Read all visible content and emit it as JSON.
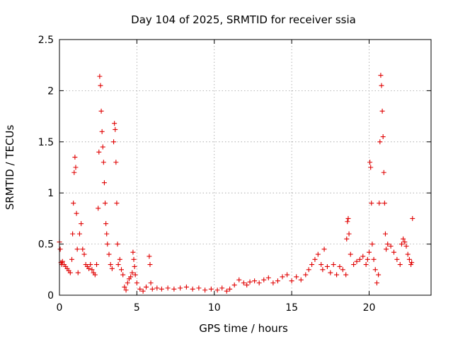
{
  "chart_data": {
    "type": "scatter",
    "title": "Day 104 of 2025, SRMTID for receiver ssia",
    "xlabel": "GPS time / hours",
    "ylabel": "SRMTID / TECUs",
    "xlim": [
      0,
      24
    ],
    "ylim": [
      0,
      2.5
    ],
    "xticks": [
      0,
      5,
      10,
      15,
      20
    ],
    "xtick_labels": [
      "0",
      "5",
      "10",
      "15",
      "20"
    ],
    "yticks": [
      0,
      0.5,
      1,
      1.5,
      2,
      2.5
    ],
    "ytick_labels": [
      "0",
      "0.5",
      "1",
      "1.5",
      "2",
      "2.5"
    ],
    "grid": true,
    "marker": "+",
    "color": "#e00000",
    "series": [
      {
        "name": "SRMTID",
        "x": [
          0.0,
          0.05,
          0.1,
          0.15,
          0.2,
          0.3,
          0.4,
          0.5,
          0.6,
          0.7,
          0.8,
          0.85,
          0.9,
          0.95,
          1.0,
          1.05,
          1.1,
          1.15,
          1.2,
          1.3,
          1.4,
          1.5,
          1.6,
          1.7,
          1.8,
          1.9,
          2.0,
          2.1,
          2.2,
          2.3,
          2.4,
          2.5,
          2.55,
          2.6,
          2.65,
          2.7,
          2.75,
          2.8,
          2.85,
          2.9,
          2.95,
          3.0,
          3.05,
          3.1,
          3.2,
          3.3,
          3.4,
          3.5,
          3.55,
          3.6,
          3.65,
          3.7,
          3.75,
          3.8,
          3.9,
          4.0,
          4.1,
          4.2,
          4.3,
          4.4,
          4.5,
          4.6,
          4.7,
          4.75,
          4.8,
          4.85,
          4.9,
          5.0,
          5.2,
          5.4,
          5.6,
          5.8,
          5.85,
          5.9,
          6.0,
          6.3,
          6.6,
          7.0,
          7.4,
          7.8,
          8.2,
          8.6,
          9.0,
          9.4,
          9.8,
          10.2,
          10.5,
          10.8,
          11.0,
          11.3,
          11.6,
          11.9,
          12.1,
          12.3,
          12.6,
          12.9,
          13.2,
          13.5,
          13.8,
          14.1,
          14.4,
          14.7,
          15.0,
          15.3,
          15.6,
          15.9,
          16.1,
          16.3,
          16.5,
          16.7,
          16.9,
          17.0,
          17.1,
          17.3,
          17.5,
          17.7,
          17.9,
          18.1,
          18.3,
          18.5,
          18.55,
          18.6,
          18.65,
          18.7,
          18.8,
          19.0,
          19.2,
          19.4,
          19.6,
          19.8,
          19.9,
          20.0,
          20.05,
          20.1,
          20.15,
          20.2,
          20.3,
          20.4,
          20.5,
          20.6,
          20.65,
          20.7,
          20.75,
          20.8,
          20.85,
          20.9,
          20.95,
          21.0,
          21.05,
          21.1,
          21.2,
          21.4,
          21.6,
          21.8,
          22.0,
          22.1,
          22.2,
          22.3,
          22.4,
          22.5,
          22.6,
          22.7,
          22.75,
          22.8
        ],
        "y": [
          0.52,
          0.45,
          0.32,
          0.3,
          0.33,
          0.3,
          0.28,
          0.26,
          0.24,
          0.22,
          0.35,
          0.6,
          0.9,
          1.2,
          1.35,
          1.25,
          0.8,
          0.45,
          0.22,
          0.6,
          0.7,
          0.45,
          0.4,
          0.3,
          0.28,
          0.26,
          0.3,
          0.25,
          0.22,
          0.2,
          0.3,
          0.85,
          1.4,
          2.14,
          2.05,
          1.8,
          1.6,
          1.45,
          1.3,
          1.1,
          0.9,
          0.7,
          0.6,
          0.5,
          0.4,
          0.3,
          0.26,
          1.5,
          1.68,
          1.62,
          1.3,
          0.9,
          0.5,
          0.3,
          0.35,
          0.25,
          0.2,
          0.08,
          0.05,
          0.12,
          0.16,
          0.18,
          0.22,
          0.42,
          0.35,
          0.28,
          0.2,
          0.12,
          0.06,
          0.04,
          0.08,
          0.38,
          0.3,
          0.12,
          0.06,
          0.07,
          0.06,
          0.07,
          0.06,
          0.07,
          0.08,
          0.06,
          0.07,
          0.05,
          0.06,
          0.05,
          0.07,
          0.04,
          0.06,
          0.1,
          0.15,
          0.12,
          0.1,
          0.13,
          0.14,
          0.12,
          0.15,
          0.17,
          0.12,
          0.14,
          0.18,
          0.2,
          0.14,
          0.18,
          0.15,
          0.2,
          0.25,
          0.3,
          0.35,
          0.4,
          0.3,
          0.25,
          0.45,
          0.28,
          0.22,
          0.3,
          0.2,
          0.28,
          0.25,
          0.2,
          0.55,
          0.72,
          0.75,
          0.6,
          0.4,
          0.3,
          0.33,
          0.35,
          0.38,
          0.3,
          0.35,
          0.42,
          1.3,
          1.25,
          0.9,
          0.5,
          0.35,
          0.25,
          0.12,
          0.2,
          0.9,
          1.5,
          2.15,
          2.05,
          1.8,
          1.55,
          1.2,
          0.9,
          0.6,
          0.45,
          0.5,
          0.48,
          0.42,
          0.35,
          0.3,
          0.5,
          0.55,
          0.52,
          0.48,
          0.4,
          0.35,
          0.3,
          0.32,
          0.75
        ]
      }
    ]
  }
}
